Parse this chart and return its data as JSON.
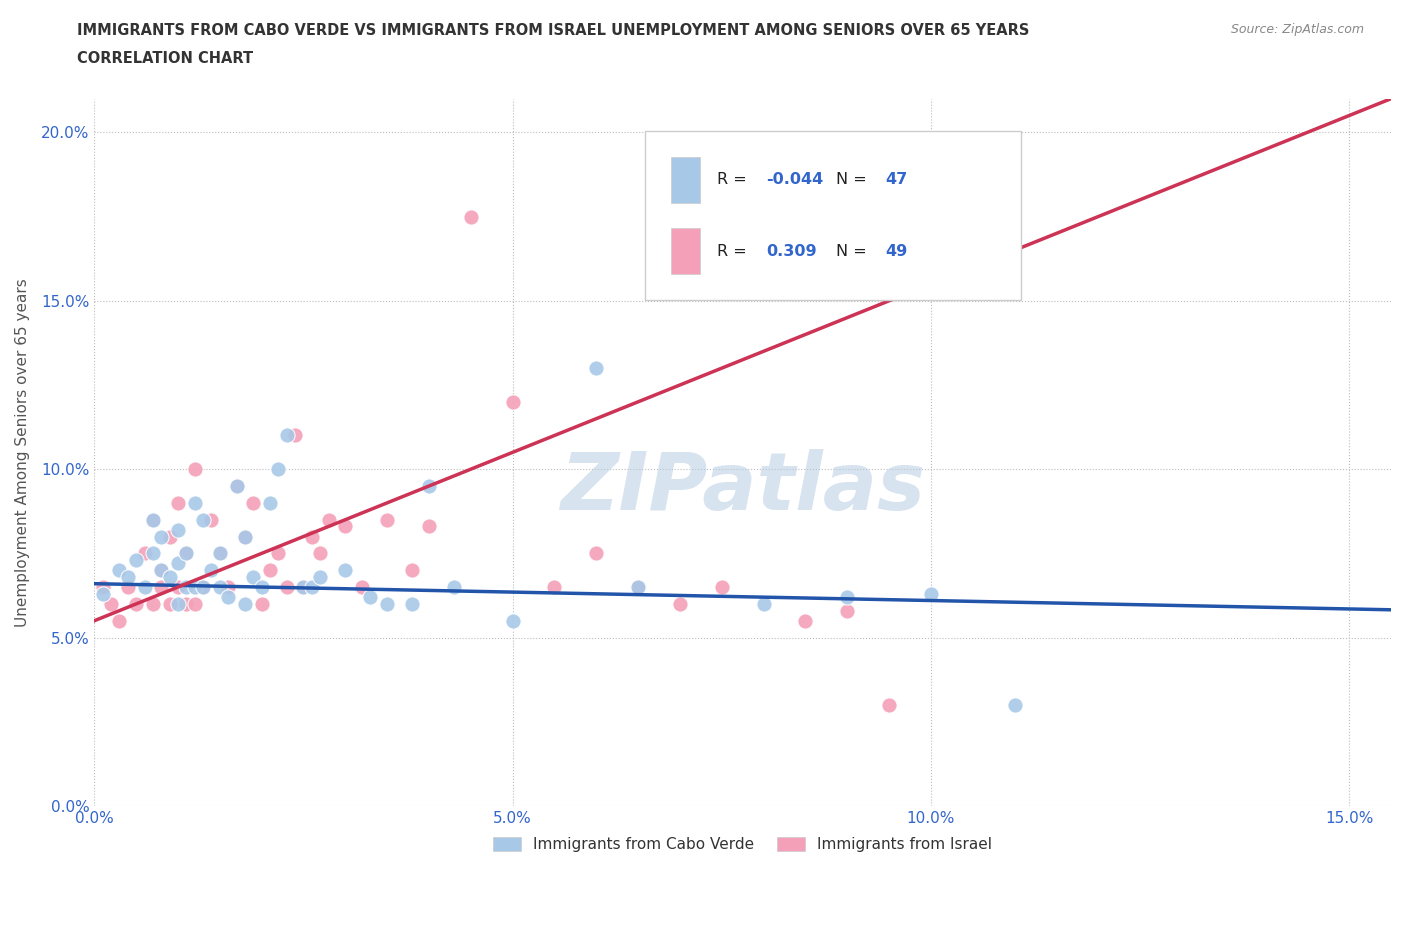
{
  "title_line1": "IMMIGRANTS FROM CABO VERDE VS IMMIGRANTS FROM ISRAEL UNEMPLOYMENT AMONG SENIORS OVER 65 YEARS",
  "title_line2": "CORRELATION CHART",
  "source": "Source: ZipAtlas.com",
  "ylabel": "Unemployment Among Seniors over 65 years",
  "xlim": [
    0.0,
    0.155
  ],
  "ylim": [
    0.0,
    0.21
  ],
  "yticks": [
    0.0,
    0.05,
    0.1,
    0.15,
    0.2
  ],
  "xticks": [
    0.0,
    0.05,
    0.1,
    0.15
  ],
  "color_cabo": "#a8c8e8",
  "color_israel": "#f4a0b8",
  "trendline_cabo": "#2255aa",
  "trendline_israel": "#cc3355",
  "trendline_israel_dashed": "#c8a0a8",
  "R_cabo": -0.044,
  "N_cabo": 47,
  "R_israel": 0.309,
  "N_israel": 49,
  "cabo_x": [
    0.001,
    0.003,
    0.004,
    0.005,
    0.006,
    0.007,
    0.007,
    0.008,
    0.008,
    0.009,
    0.01,
    0.01,
    0.01,
    0.011,
    0.011,
    0.012,
    0.012,
    0.013,
    0.013,
    0.014,
    0.015,
    0.015,
    0.016,
    0.017,
    0.018,
    0.018,
    0.019,
    0.02,
    0.021,
    0.022,
    0.023,
    0.025,
    0.026,
    0.027,
    0.03,
    0.033,
    0.035,
    0.038,
    0.04,
    0.043,
    0.05,
    0.06,
    0.065,
    0.08,
    0.09,
    0.1,
    0.11
  ],
  "cabo_y": [
    0.063,
    0.07,
    0.068,
    0.073,
    0.065,
    0.075,
    0.085,
    0.07,
    0.08,
    0.068,
    0.06,
    0.072,
    0.082,
    0.065,
    0.075,
    0.065,
    0.09,
    0.065,
    0.085,
    0.07,
    0.065,
    0.075,
    0.062,
    0.095,
    0.06,
    0.08,
    0.068,
    0.065,
    0.09,
    0.1,
    0.11,
    0.065,
    0.065,
    0.068,
    0.07,
    0.062,
    0.06,
    0.06,
    0.095,
    0.065,
    0.055,
    0.13,
    0.065,
    0.06,
    0.062,
    0.063,
    0.03
  ],
  "israel_x": [
    0.001,
    0.002,
    0.003,
    0.004,
    0.005,
    0.006,
    0.007,
    0.007,
    0.008,
    0.008,
    0.009,
    0.009,
    0.01,
    0.01,
    0.011,
    0.011,
    0.012,
    0.012,
    0.013,
    0.014,
    0.015,
    0.016,
    0.017,
    0.018,
    0.019,
    0.02,
    0.021,
    0.022,
    0.023,
    0.024,
    0.025,
    0.026,
    0.027,
    0.028,
    0.03,
    0.032,
    0.035,
    0.038,
    0.04,
    0.045,
    0.05,
    0.055,
    0.06,
    0.065,
    0.07,
    0.075,
    0.085,
    0.09,
    0.095
  ],
  "israel_y": [
    0.065,
    0.06,
    0.055,
    0.065,
    0.06,
    0.075,
    0.06,
    0.085,
    0.065,
    0.07,
    0.06,
    0.08,
    0.065,
    0.09,
    0.06,
    0.075,
    0.06,
    0.1,
    0.065,
    0.085,
    0.075,
    0.065,
    0.095,
    0.08,
    0.09,
    0.06,
    0.07,
    0.075,
    0.065,
    0.11,
    0.065,
    0.08,
    0.075,
    0.085,
    0.083,
    0.065,
    0.085,
    0.07,
    0.083,
    0.175,
    0.12,
    0.065,
    0.075,
    0.065,
    0.06,
    0.065,
    0.055,
    0.058,
    0.03
  ],
  "watermark": "ZIPatlas",
  "legend_label_cabo": "Immigrants from Cabo Verde",
  "legend_label_israel": "Immigrants from Israel"
}
